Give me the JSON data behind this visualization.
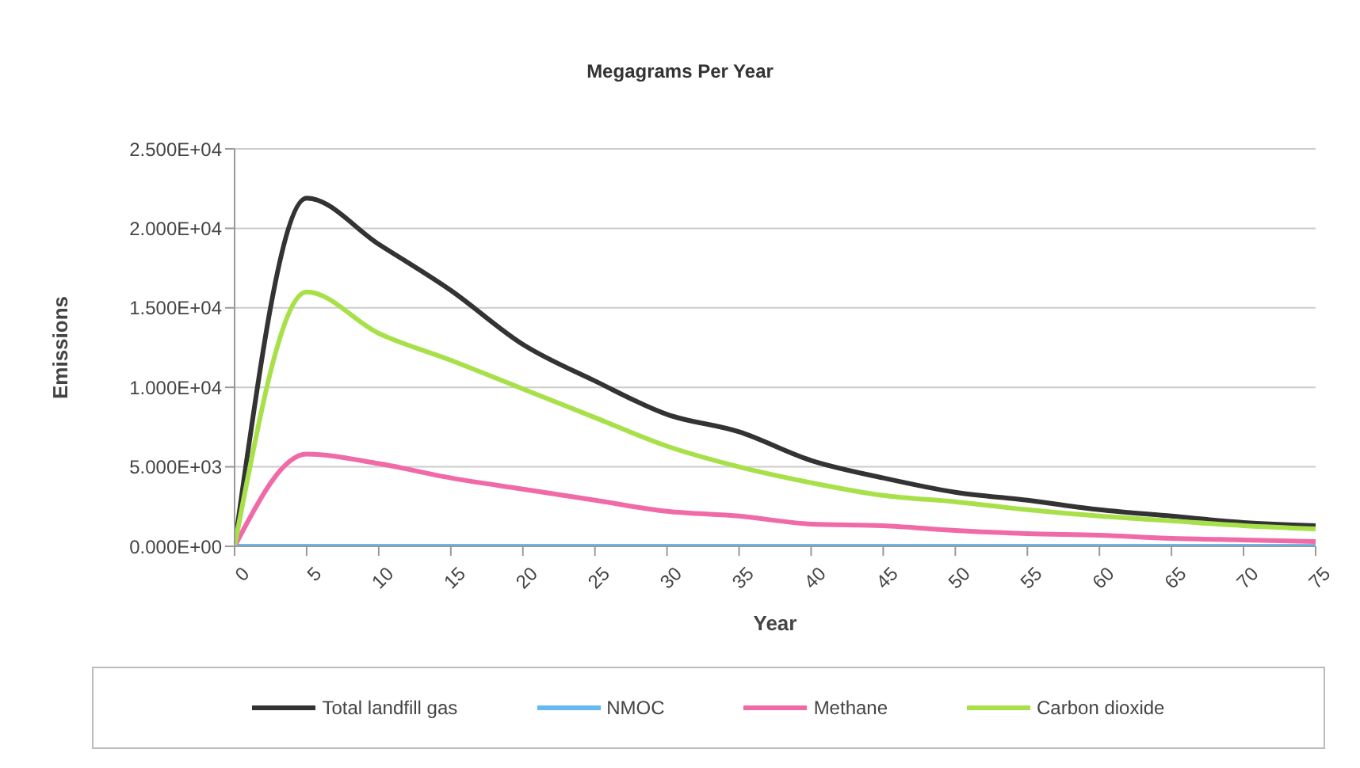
{
  "chart_data": {
    "type": "line",
    "title": "Megagrams Per Year",
    "xlabel": "Year",
    "ylabel": "Emissions",
    "x": [
      0,
      5,
      10,
      15,
      20,
      25,
      30,
      35,
      40,
      45,
      50,
      55,
      60,
      65,
      70,
      75
    ],
    "series": [
      {
        "name": "Total landfill gas",
        "color": "#333333",
        "values": [
          0,
          21900,
          19000,
          16100,
          12700,
          10400,
          8300,
          7200,
          5400,
          4300,
          3400,
          2900,
          2300,
          1900,
          1500,
          1300
        ]
      },
      {
        "name": "NMOC",
        "color": "#66b8f0",
        "values": [
          0,
          0,
          0,
          0,
          0,
          0,
          0,
          0,
          0,
          0,
          0,
          0,
          0,
          0,
          0,
          0
        ]
      },
      {
        "name": "Methane",
        "color": "#f06aa8",
        "values": [
          0,
          5800,
          5200,
          4300,
          3600,
          2900,
          2200,
          1900,
          1400,
          1300,
          1000,
          800,
          700,
          500,
          400,
          300
        ]
      },
      {
        "name": "Carbon dioxide",
        "color": "#a8e04a",
        "values": [
          0,
          16000,
          13400,
          11700,
          9900,
          8100,
          6300,
          5000,
          4000,
          3200,
          2800,
          2300,
          1900,
          1600,
          1300,
          1100
        ]
      }
    ],
    "xlim": [
      0,
      75
    ],
    "xticks": [
      0,
      5,
      10,
      15,
      20,
      25,
      30,
      35,
      40,
      45,
      50,
      55,
      60,
      65,
      70,
      75
    ],
    "ylim": [
      0,
      25000
    ],
    "yticks": [
      {
        "value": 0,
        "label": "0.000E+00"
      },
      {
        "value": 5000,
        "label": "5.000E+03"
      },
      {
        "value": 10000,
        "label": "1.000E+04"
      },
      {
        "value": 15000,
        "label": "1.500E+04"
      },
      {
        "value": 20000,
        "label": "2.000E+04"
      },
      {
        "value": 25000,
        "label": "2.500E+04"
      }
    ],
    "grid": "y",
    "legend": "bottom",
    "marker": "none",
    "line_style": "solid"
  }
}
